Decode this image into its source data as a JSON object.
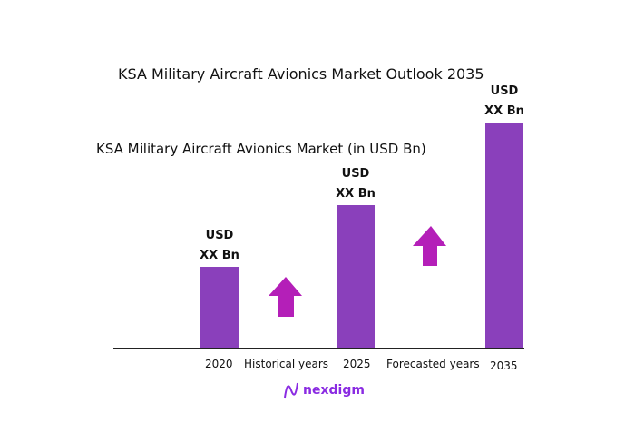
{
  "chart_data": {
    "type": "bar",
    "title": "KSA Military Aircraft Avionics Market Outlook 2035",
    "subtitle": "KSA Military Aircraft Avionics Market (in USD Bn)",
    "categories": [
      "2020",
      "2025",
      "2035"
    ],
    "data_labels": [
      [
        "USD",
        "XX Bn"
      ],
      [
        "USD",
        "XX Bn"
      ],
      [
        "USD",
        "XX Bn"
      ]
    ],
    "period_labels": [
      "Historical years",
      "Forecasted years"
    ],
    "bar_color": "#8a40bb",
    "arrow_color": "#b41fb8",
    "grid": false
  },
  "brand": {
    "name": "nexdigm",
    "color": "#8a2be2"
  }
}
